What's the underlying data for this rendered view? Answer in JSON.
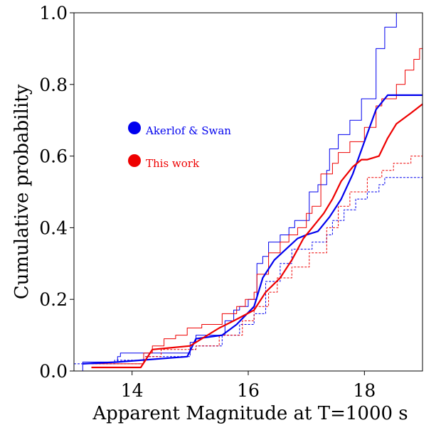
{
  "chart_data": {
    "type": "line",
    "xlabel": "Apparent Magnitude at T=1000 s",
    "ylabel": "Cumulative probability",
    "xlim": [
      13.0,
      19.0
    ],
    "ylim": [
      0.0,
      1.0
    ],
    "xticks": [
      14,
      16,
      18
    ],
    "xtick_labels": [
      "14",
      "16",
      "18"
    ],
    "yticks": [
      0.0,
      0.2,
      0.4,
      0.6,
      0.8,
      1.0
    ],
    "ytick_labels": [
      "0.0",
      "0.2",
      "0.4",
      "0.6",
      "0.8",
      "1.0"
    ],
    "grid": false,
    "legend_position": "center-left",
    "legend": [
      {
        "name": "Akerlof & Swan",
        "color": "#0000ee"
      },
      {
        "name": "This work",
        "color": "#ee0000"
      }
    ],
    "series": [
      {
        "color": "#0000ee",
        "style": "thin-solid-step",
        "x": [
          13.1,
          13.15,
          13.75,
          13.8,
          15.0,
          15.1,
          15.6,
          15.75,
          15.85,
          16.0,
          16.15,
          16.25,
          16.35,
          16.55,
          16.7,
          16.8,
          17.05,
          17.2,
          17.35,
          17.4,
          17.55,
          17.75,
          17.95,
          18.2,
          18.35,
          18.55,
          18.75,
          19.0
        ],
        "y": [
          0.0,
          0.025,
          0.04,
          0.05,
          0.08,
          0.1,
          0.14,
          0.17,
          0.18,
          0.2,
          0.3,
          0.32,
          0.36,
          0.38,
          0.4,
          0.42,
          0.5,
          0.52,
          0.56,
          0.62,
          0.66,
          0.7,
          0.76,
          0.9,
          0.96,
          1.0,
          1.0,
          1.0
        ]
      },
      {
        "color": "#ee0000",
        "style": "thin-solid-step",
        "x": [
          13.3,
          14.2,
          14.35,
          14.55,
          14.75,
          14.95,
          15.2,
          15.55,
          15.8,
          15.95,
          16.1,
          16.15,
          16.35,
          16.55,
          16.7,
          16.85,
          17.0,
          17.1,
          17.25,
          17.45,
          17.55,
          17.75,
          18.0,
          18.2,
          18.3,
          18.55,
          18.7,
          18.85,
          18.95,
          19.0
        ],
        "y": [
          0.02,
          0.05,
          0.07,
          0.09,
          0.1,
          0.12,
          0.13,
          0.16,
          0.18,
          0.2,
          0.22,
          0.27,
          0.33,
          0.36,
          0.38,
          0.4,
          0.44,
          0.46,
          0.55,
          0.58,
          0.61,
          0.64,
          0.68,
          0.74,
          0.76,
          0.8,
          0.84,
          0.87,
          0.9,
          0.9
        ]
      },
      {
        "color": "#0000ee",
        "style": "dashed-step",
        "x": [
          13.0,
          13.7,
          14.2,
          15.0,
          15.1,
          15.55,
          15.85,
          16.1,
          16.3,
          16.55,
          16.75,
          17.1,
          17.35,
          17.45,
          17.65,
          17.85,
          18.05,
          18.25,
          18.35,
          19.0
        ],
        "y": [
          0.02,
          0.03,
          0.04,
          0.06,
          0.07,
          0.1,
          0.13,
          0.16,
          0.25,
          0.3,
          0.34,
          0.36,
          0.38,
          0.42,
          0.45,
          0.48,
          0.5,
          0.52,
          0.54,
          0.54
        ]
      },
      {
        "color": "#ee0000",
        "style": "dashed-step",
        "x": [
          13.25,
          14.2,
          14.5,
          15.1,
          15.5,
          15.9,
          16.1,
          16.35,
          16.5,
          16.75,
          17.05,
          17.35,
          17.55,
          17.75,
          18.05,
          18.3,
          18.5,
          18.8,
          19.0
        ],
        "y": [
          0.02,
          0.04,
          0.06,
          0.07,
          0.1,
          0.14,
          0.18,
          0.22,
          0.26,
          0.29,
          0.33,
          0.4,
          0.46,
          0.5,
          0.54,
          0.56,
          0.58,
          0.6,
          0.6
        ]
      },
      {
        "color": "#0000ee",
        "style": "thick-curve",
        "x": [
          13.15,
          13.75,
          14.95,
          15.1,
          15.55,
          15.8,
          16.1,
          16.25,
          16.45,
          16.65,
          16.85,
          17.0,
          17.2,
          17.4,
          17.6,
          17.8,
          18.0,
          18.2,
          18.4,
          18.7,
          19.0
        ],
        "y": [
          0.02,
          0.025,
          0.04,
          0.09,
          0.1,
          0.13,
          0.18,
          0.26,
          0.31,
          0.34,
          0.37,
          0.38,
          0.39,
          0.43,
          0.48,
          0.55,
          0.64,
          0.73,
          0.77,
          0.77,
          0.77
        ]
      },
      {
        "color": "#ee0000",
        "style": "thick-curve",
        "x": [
          13.3,
          14.15,
          14.35,
          15.0,
          15.2,
          15.5,
          15.75,
          16.1,
          16.3,
          16.55,
          16.75,
          16.95,
          17.15,
          17.3,
          17.45,
          17.6,
          17.8,
          17.95,
          18.05,
          18.25,
          18.4,
          18.55,
          18.8,
          19.0
        ],
        "y": [
          0.01,
          0.01,
          0.06,
          0.07,
          0.09,
          0.12,
          0.14,
          0.17,
          0.22,
          0.26,
          0.31,
          0.37,
          0.41,
          0.44,
          0.48,
          0.53,
          0.57,
          0.59,
          0.59,
          0.6,
          0.65,
          0.69,
          0.72,
          0.745
        ]
      }
    ]
  }
}
